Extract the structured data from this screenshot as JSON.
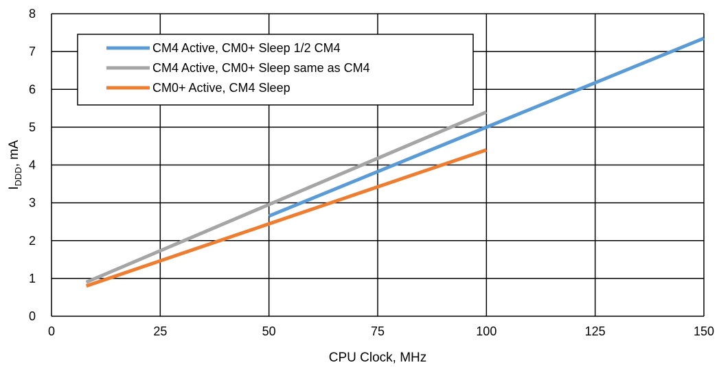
{
  "chart_data": {
    "type": "line",
    "xlabel": "CPU Clock, MHz",
    "ylabel": {
      "main": "I",
      "sub": "DDD",
      "suffix": ", mA"
    },
    "xlim": [
      0,
      150
    ],
    "ylim": [
      0,
      8
    ],
    "xticks": [
      0,
      25,
      50,
      75,
      100,
      125,
      150
    ],
    "yticks": [
      0,
      1,
      2,
      3,
      4,
      5,
      6,
      7,
      8
    ],
    "grid": true,
    "legend_position": "top-left",
    "series": [
      {
        "name": "CM4 Active, CM0+ Sleep 1/2 CM4",
        "color": "#5B9BD5",
        "x": [
          50,
          150
        ],
        "y": [
          2.65,
          7.35
        ]
      },
      {
        "name": "CM4 Active, CM0+ Sleep same as CM4",
        "color": "#A5A5A5",
        "x": [
          8,
          100
        ],
        "y": [
          0.9,
          5.4
        ]
      },
      {
        "name": "CM0+ Active, CM4 Sleep",
        "color": "#ED7D31",
        "x": [
          8,
          100
        ],
        "y": [
          0.8,
          4.4
        ]
      }
    ]
  }
}
